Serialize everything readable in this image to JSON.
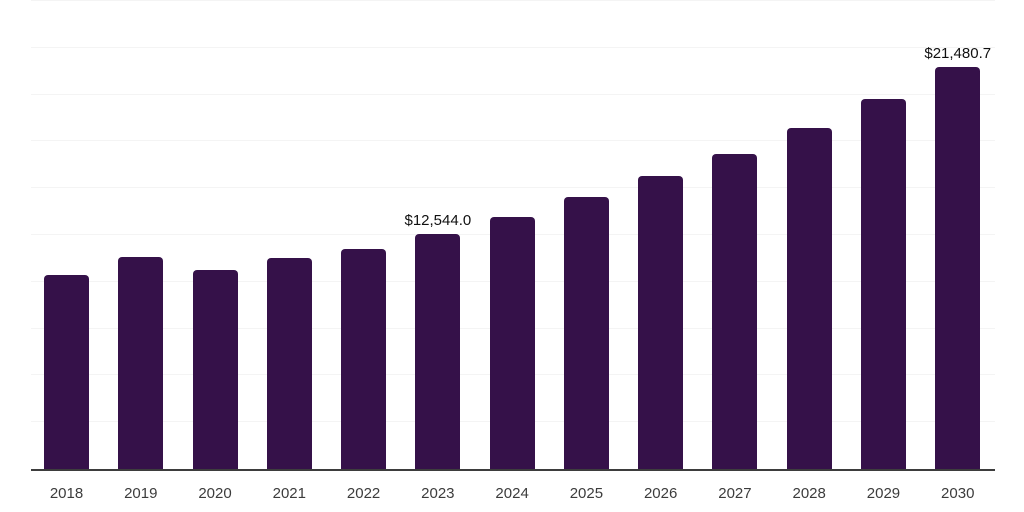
{
  "chart_data": {
    "type": "bar",
    "categories": [
      "2018",
      "2019",
      "2020",
      "2021",
      "2022",
      "2023",
      "2024",
      "2025",
      "2026",
      "2027",
      "2028",
      "2029",
      "2030"
    ],
    "values": [
      10350,
      11300,
      10650,
      11250,
      11750,
      12544.0,
      13450,
      14550,
      15650,
      16850,
      18200,
      19750,
      21480.7
    ],
    "value_labels": {
      "2023": "$12,544.0",
      "2030": "$21,480.7"
    },
    "title": "",
    "xlabel": "",
    "ylabel": "",
    "ylim": [
      0,
      25000
    ],
    "gridline_step": 2500,
    "grid": true,
    "legend_position": "none",
    "bar_color": "#351149",
    "gridline_color": "#f4f4f4",
    "axis_color": "#3d3d3d",
    "tick_label_color": "#3c3c3c",
    "value_label_color": "#101010"
  }
}
